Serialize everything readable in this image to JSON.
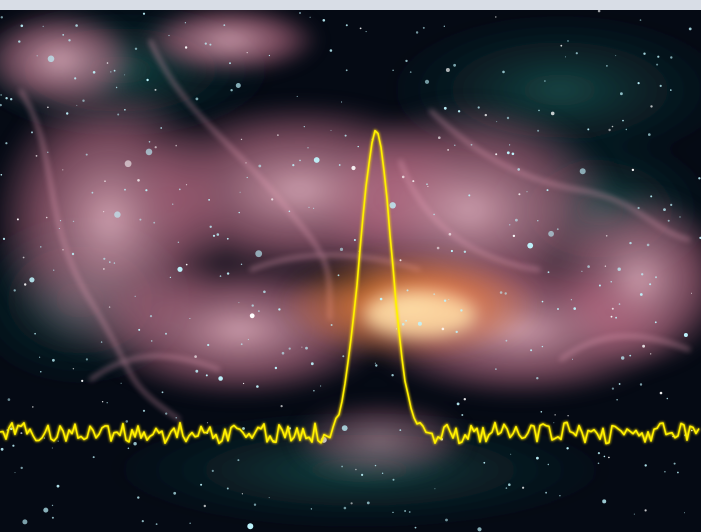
{
  "image": {
    "subject": "nebula",
    "overlay": "spectrum-line",
    "colors": {
      "space": "#050a14",
      "deep_teal": "#0b2a2e",
      "nebula_pink": "#c9758f",
      "nebula_light": "#f0b8c8",
      "core_orange": "#ff8a3d",
      "core_glow": "#ffd18a",
      "star": "#bff6ff",
      "spectrum": "#ffe000",
      "top_band": "#d8dde6"
    }
  }
}
